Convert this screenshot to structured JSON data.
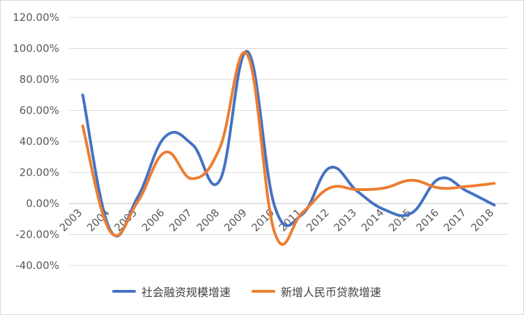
{
  "chart_data": {
    "type": "line",
    "title": "",
    "xlabel": "",
    "ylabel": "",
    "categories": [
      "2003",
      "2004",
      "2005",
      "2006",
      "2007",
      "2008",
      "2009",
      "2010",
      "2011",
      "2012",
      "2013",
      "2014",
      "2015",
      "2016",
      "2017",
      "2018"
    ],
    "y_ticks": [
      "120.00%",
      "100.00%",
      "80.00%",
      "60.00%",
      "40.00%",
      "20.00%",
      "0.00%",
      "-20.00%",
      "-40.00%"
    ],
    "ylim": [
      -40,
      120
    ],
    "grid": true,
    "legend_position": "bottom",
    "series": [
      {
        "name": "社会融资规模增速",
        "color": "#4472c4",
        "values": [
          70,
          -17,
          4,
          43,
          38,
          15,
          98,
          -2,
          -7,
          23,
          8,
          -4,
          -6,
          16,
          8,
          -1
        ]
      },
      {
        "name": "新增人民币贷款增速",
        "color": "#ed7d31",
        "values": [
          50,
          -18,
          1,
          33,
          16,
          36,
          96,
          -19,
          -6,
          10,
          9,
          10,
          15,
          10,
          11,
          13
        ]
      }
    ]
  }
}
